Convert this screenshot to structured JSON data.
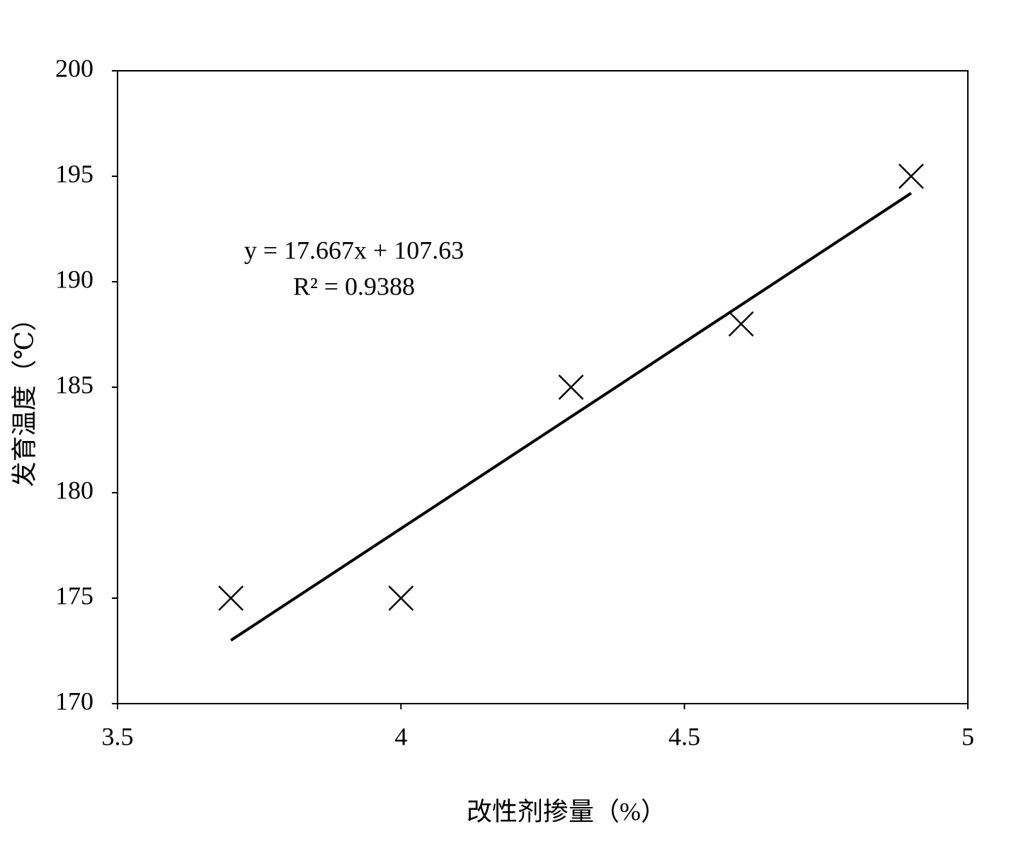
{
  "chart_data": {
    "type": "scatter",
    "x_label": "改性剂掺量（%）",
    "y_label": "发育温度（℃）",
    "equation": "y = 17.667x + 107.63",
    "r_squared": "R² = 0.9388",
    "x": [
      3.7,
      4.0,
      4.3,
      4.6,
      4.9
    ],
    "values": [
      175,
      175,
      185,
      188,
      195
    ],
    "color": "#000000",
    "trendline": {
      "x": [
        3.7,
        4.9
      ],
      "values": [
        173.0,
        194.2
      ]
    },
    "xlim": [
      3.5,
      5
    ],
    "xticks": [
      3.5,
      4,
      4.5,
      5
    ],
    "ylim": [
      170,
      200
    ],
    "yticks": [
      170,
      175,
      180,
      185,
      190,
      195,
      200
    ],
    "grid": false
  }
}
